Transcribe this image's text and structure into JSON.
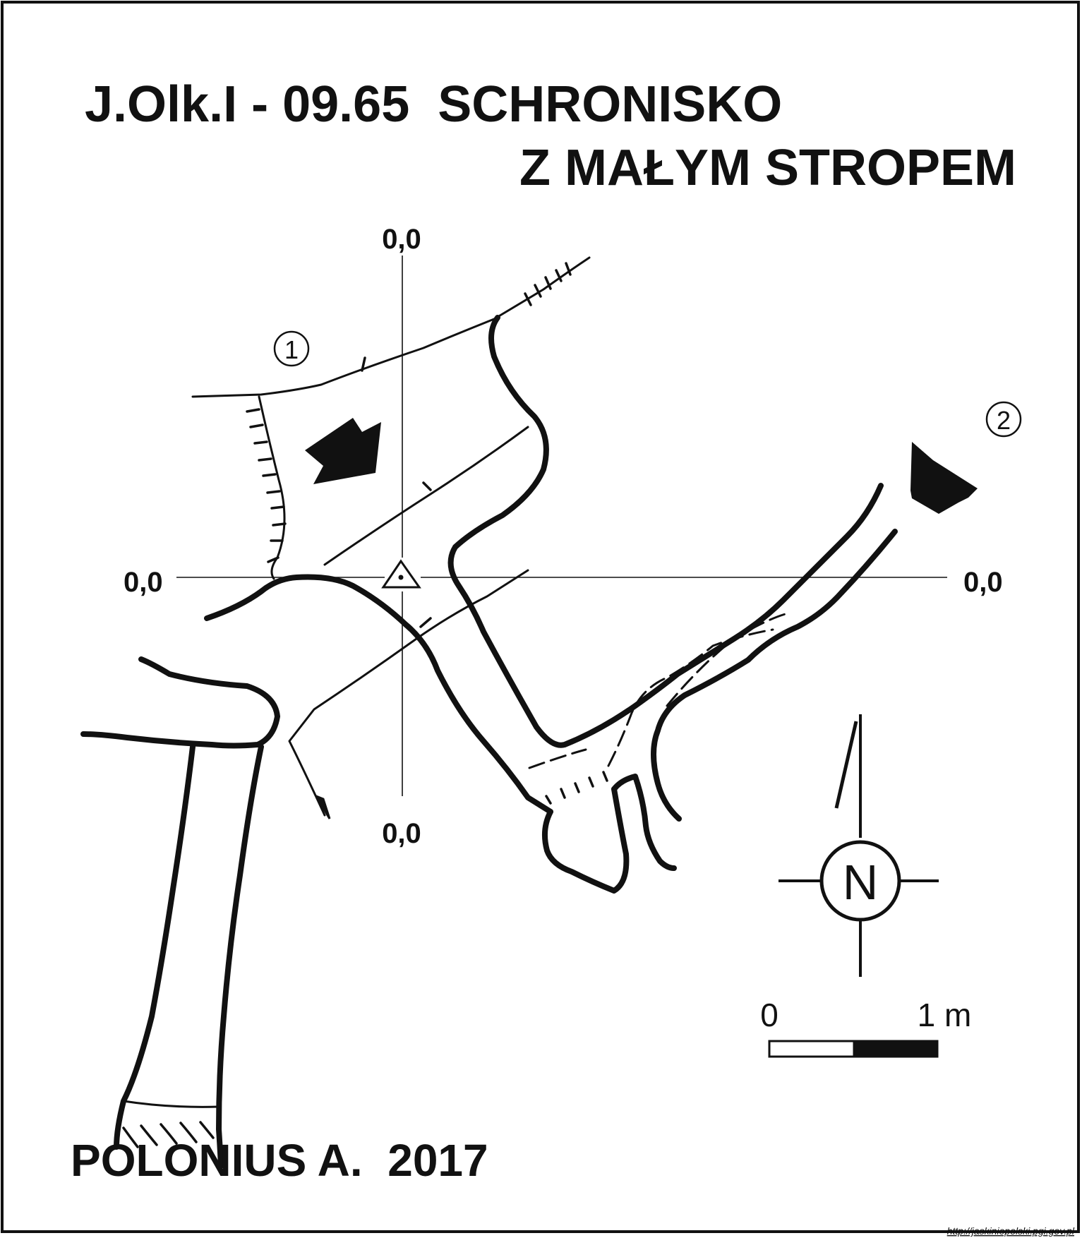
{
  "map": {
    "title_line1": "J.Olk.I - 09.65  SCHRONISKO",
    "title_line2": "Z MAŁYM STROPEM",
    "author": "POLONIUS A.  2017",
    "source_url": "http://jaskiniepolski.pgi.gov.pl",
    "grid_labels": {
      "top": "0,0",
      "bottom": "0,0",
      "left": "0,0",
      "right": "0,0"
    },
    "entrances": [
      {
        "label": "1"
      },
      {
        "label": "2"
      }
    ],
    "north_arrow": {
      "label": "N"
    },
    "scale_bar": {
      "start_label": "0",
      "end_label": "1 m",
      "length_m": 1,
      "segments": 2
    },
    "colors": {
      "ink": "#111111",
      "paper": "#ffffff"
    }
  }
}
